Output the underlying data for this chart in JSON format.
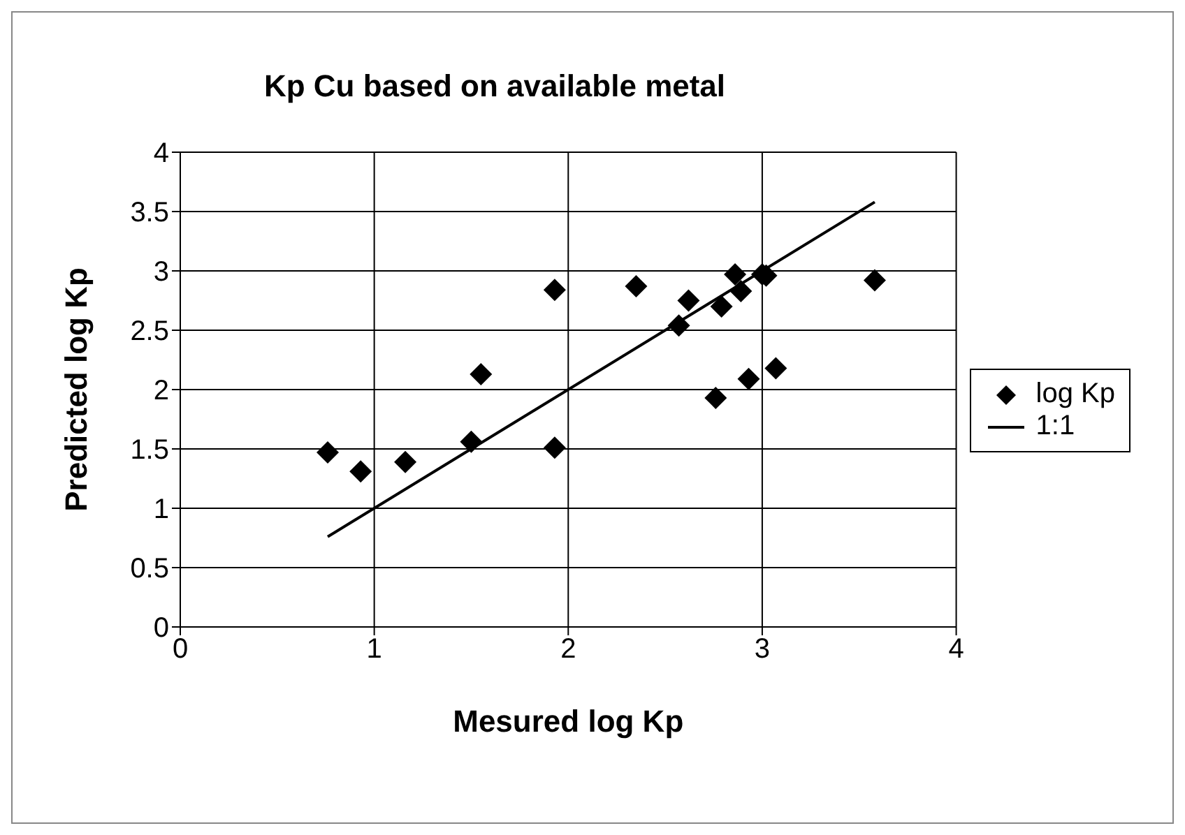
{
  "chart_data": {
    "type": "scatter",
    "title": "Kp Cu based on available metal",
    "xlabel": "Mesured log Kp",
    "ylabel": "Predicted log Kp",
    "xlim": [
      0,
      4
    ],
    "xticks": [
      0,
      1,
      2,
      3,
      4
    ],
    "ylim": [
      0,
      4
    ],
    "yticks": [
      0,
      0.5,
      1,
      1.5,
      2,
      2.5,
      3,
      3.5,
      4
    ],
    "grid": true,
    "legend": "right",
    "series": [
      {
        "name": "log Kp",
        "color": "#000000",
        "marker": "diamond",
        "x": [
          0.76,
          0.93,
          1.16,
          1.5,
          1.55,
          1.93,
          1.93,
          2.35,
          2.57,
          2.62,
          2.76,
          2.79,
          2.86,
          2.89,
          2.93,
          3.0,
          3.02,
          3.07,
          3.58
        ],
        "values": [
          1.47,
          1.31,
          1.39,
          1.56,
          2.13,
          2.84,
          1.51,
          2.87,
          2.54,
          2.75,
          1.93,
          2.7,
          2.97,
          2.83,
          2.09,
          2.97,
          2.96,
          2.18,
          2.92
        ]
      },
      {
        "name": "1:1",
        "type": "line",
        "color": "#000000",
        "marker": "none",
        "line_style": "solid",
        "x": [
          0.76,
          3.58
        ],
        "values": [
          0.76,
          3.58
        ]
      }
    ]
  }
}
